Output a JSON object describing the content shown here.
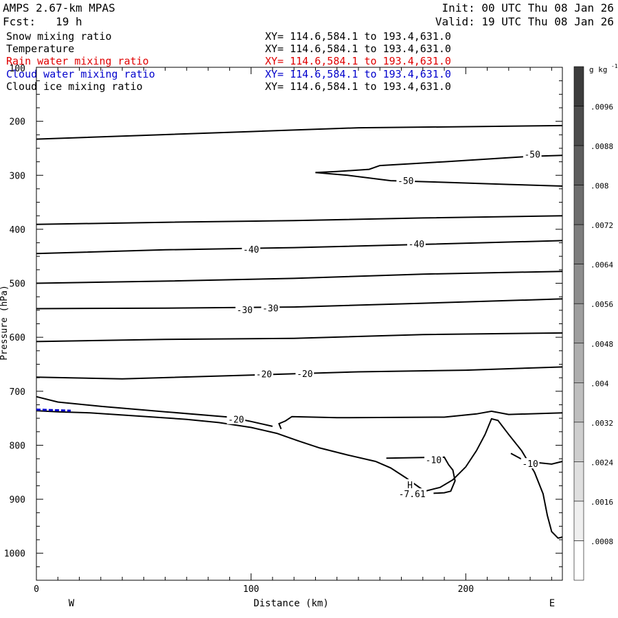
{
  "header": {
    "model": "AMPS 2.67-km MPAS",
    "init": "Init: 00 UTC Thu 08 Jan 26",
    "forecast": "Fcst:   19 h",
    "valid": "Valid: 19 UTC Thu 08 Jan 26"
  },
  "fields": [
    {
      "name": "Snow mixing ratio",
      "xy": "XY= 114.6,584.1 to 193.4,631.0",
      "color": "#000000"
    },
    {
      "name": "Temperature",
      "xy": "XY= 114.6,584.1 to 193.4,631.0",
      "color": "#000000"
    },
    {
      "name": "Rain water mixing ratio",
      "xy": "XY= 114.6,584.1 to 193.4,631.0",
      "color": "#e00000"
    },
    {
      "name": "Cloud water mixing ratio",
      "xy": "XY= 114.6,584.1 to 193.4,631.0",
      "color": "#0000cc"
    },
    {
      "name": "Cloud ice mixing ratio",
      "xy": "XY= 114.6,584.1 to 193.4,631.0",
      "color": "#000000"
    }
  ],
  "chart_data": {
    "type": "contour",
    "xlabel": "Distance (km)",
    "ylabel": "Pressure (hPa)",
    "xlim": [
      0,
      245
    ],
    "ylim": [
      1050,
      100
    ],
    "x_ticks": [
      0,
      100,
      200
    ],
    "y_ticks": [
      200,
      300,
      400,
      500,
      600,
      700,
      800,
      900,
      1000
    ],
    "y_top_label": "100",
    "west_label": "W",
    "east_label": "E",
    "colorbar": {
      "unit": "g kg",
      "unit_exp": "-1",
      "labels": [
        ".0096",
        ".0088",
        ".008",
        ".0072",
        ".0064",
        ".0056",
        ".0048",
        ".004",
        ".0032",
        ".0024",
        ".0016",
        ".0008"
      ],
      "levels": [
        0.0104,
        0.0096,
        0.0088,
        0.008,
        0.0072,
        0.0064,
        0.0056,
        0.0048,
        0.004,
        0.0032,
        0.0024,
        0.0016,
        0.0008,
        0
      ]
    },
    "terrain": [
      [
        0,
        736
      ],
      [
        10,
        738
      ],
      [
        25,
        740
      ],
      [
        40,
        744
      ],
      [
        55,
        748
      ],
      [
        70,
        752
      ],
      [
        85,
        758
      ],
      [
        100,
        767
      ],
      [
        112,
        778
      ],
      [
        122,
        792
      ],
      [
        132,
        805
      ],
      [
        145,
        818
      ],
      [
        158,
        830
      ],
      [
        165,
        842
      ],
      [
        172,
        860
      ],
      [
        178,
        877
      ],
      [
        181,
        885
      ],
      [
        188,
        878
      ],
      [
        194,
        864
      ],
      [
        200,
        840
      ],
      [
        205,
        810
      ],
      [
        209,
        780
      ],
      [
        212,
        751
      ],
      [
        215,
        754
      ],
      [
        220,
        780
      ],
      [
        226,
        810
      ],
      [
        232,
        850
      ],
      [
        236,
        890
      ],
      [
        238,
        930
      ],
      [
        240,
        960
      ],
      [
        243,
        972
      ],
      [
        245,
        970
      ]
    ],
    "isotherms": [
      {
        "label": "",
        "points": [
          [
            0,
            233
          ],
          [
            50,
            226
          ],
          [
            100,
            219
          ],
          [
            150,
            212
          ],
          [
            200,
            210
          ],
          [
            245,
            208
          ]
        ]
      },
      {
        "label": "-50",
        "points": [
          [
            130,
            295
          ],
          [
            140,
            293
          ],
          [
            155,
            289
          ],
          [
            160,
            282
          ],
          [
            190,
            275
          ],
          [
            230,
            265
          ],
          [
            245,
            263
          ]
        ]
      },
      {
        "label": "-50",
        "points": [
          [
            130,
            295
          ],
          [
            145,
            300
          ],
          [
            165,
            310
          ],
          [
            190,
            313
          ],
          [
            220,
            317
          ],
          [
            245,
            320
          ]
        ]
      },
      {
        "label": "",
        "points": [
          [
            0,
            391
          ],
          [
            60,
            387
          ],
          [
            120,
            384
          ],
          [
            180,
            379
          ],
          [
            245,
            375
          ]
        ]
      },
      {
        "label": "-40",
        "points": [
          [
            0,
            445
          ],
          [
            60,
            438
          ],
          [
            120,
            434
          ],
          [
            180,
            428
          ],
          [
            245,
            421
          ]
        ]
      },
      {
        "label": "",
        "points": [
          [
            0,
            500
          ],
          [
            60,
            496
          ],
          [
            120,
            491
          ],
          [
            180,
            483
          ],
          [
            245,
            478
          ]
        ]
      },
      {
        "label": "-30",
        "points": [
          [
            0,
            547
          ],
          [
            60,
            546
          ],
          [
            120,
            544
          ],
          [
            180,
            537
          ],
          [
            245,
            529
          ]
        ]
      },
      {
        "label": "",
        "points": [
          [
            0,
            608
          ],
          [
            60,
            604
          ],
          [
            120,
            602
          ],
          [
            180,
            595
          ],
          [
            245,
            592
          ]
        ]
      },
      {
        "label": "-20",
        "points": [
          [
            0,
            674
          ],
          [
            40,
            677
          ],
          [
            100,
            670
          ],
          [
            150,
            664
          ],
          [
            200,
            661
          ],
          [
            245,
            655
          ]
        ]
      },
      {
        "label": "-20",
        "points": [
          [
            0,
            710
          ],
          [
            10,
            720
          ],
          [
            30,
            728
          ],
          [
            60,
            738
          ],
          [
            90,
            748
          ],
          [
            100,
            756
          ],
          [
            110,
            765
          ]
        ]
      },
      {
        "label": "",
        "points": [
          [
            114,
            770
          ],
          [
            113,
            760
          ],
          [
            116,
            755
          ],
          [
            119,
            747
          ],
          [
            140,
            749
          ],
          [
            190,
            748
          ],
          [
            205,
            742
          ],
          [
            212,
            737
          ],
          [
            220,
            743
          ],
          [
            245,
            740
          ]
        ]
      },
      {
        "label": "-10",
        "points": [
          [
            163,
            824
          ],
          [
            190,
            822
          ],
          [
            192,
            836
          ],
          [
            194,
            846
          ],
          [
            195,
            866
          ],
          [
            193,
            885
          ],
          [
            190,
            888
          ],
          [
            185,
            889
          ]
        ]
      },
      {
        "label": "-10",
        "points": [
          [
            221,
            815
          ],
          [
            228,
            830
          ],
          [
            240,
            835
          ],
          [
            245,
            830
          ]
        ]
      }
    ],
    "contour_labels": [
      {
        "text": "-50",
        "x": 231,
        "y": 261
      },
      {
        "text": "-50",
        "x": 172,
        "y": 310
      },
      {
        "text": "-40",
        "x": 100,
        "y": 437
      },
      {
        "text": "-40",
        "x": 177,
        "y": 427
      },
      {
        "text": "-30",
        "x": 97,
        "y": 549
      },
      {
        "text": "-30",
        "x": 109,
        "y": 546
      },
      {
        "text": "-20",
        "x": 106,
        "y": 668
      },
      {
        "text": "-20",
        "x": 125,
        "y": 667
      },
      {
        "text": "-20",
        "x": 93,
        "y": 752
      },
      {
        "text": "-10",
        "x": 185,
        "y": 827
      },
      {
        "text": "-10",
        "x": 230,
        "y": 834
      },
      {
        "text": "H",
        "x": 174,
        "y": 873
      },
      {
        "text": "-7.61",
        "x": 175,
        "y": 890
      }
    ],
    "cloud_water_segment": [
      [
        0,
        734
      ],
      [
        16,
        736
      ]
    ]
  }
}
